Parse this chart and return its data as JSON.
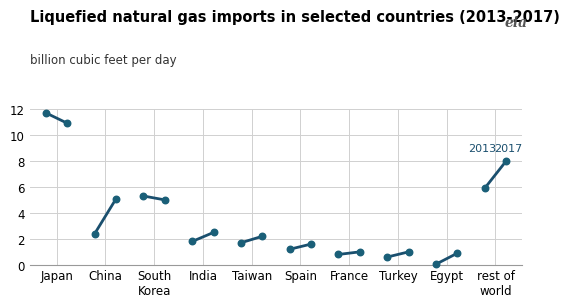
{
  "title": "Liquefied natural gas imports in selected countries (2013-2017)",
  "ylabel": "billion cubic feet per day",
  "countries": [
    "Japan",
    "China",
    "South\nKorea",
    "India",
    "Taiwan",
    "Spain",
    "France",
    "Turkey",
    "Egypt",
    "rest of\nworld"
  ],
  "data_2013": [
    11.7,
    2.4,
    5.3,
    1.8,
    1.7,
    1.2,
    0.8,
    0.6,
    0.05,
    5.9
  ],
  "data_2017": [
    10.9,
    5.1,
    5.0,
    2.5,
    2.2,
    1.6,
    1.0,
    1.0,
    0.9,
    8.0
  ],
  "line_color": "#1a4f6e",
  "dot_color": "#1a5f78",
  "ylim": [
    0,
    12
  ],
  "yticks": [
    0,
    2,
    4,
    6,
    8,
    10,
    12
  ],
  "background_color": "#ffffff",
  "grid_color": "#d0d0d0",
  "title_fontsize": 10.5,
  "ylabel_fontsize": 8.5,
  "tick_fontsize": 8.5
}
